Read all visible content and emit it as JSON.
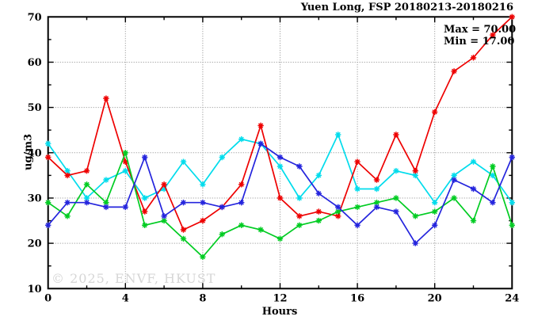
{
  "chart_data": {
    "type": "line",
    "title": "Yuen Long, FSP 20180213-20180216",
    "xlabel": "Hours",
    "ylabel": "ug/m3",
    "xlim": [
      0,
      24
    ],
    "ylim": [
      10,
      70
    ],
    "x_major_ticks": [
      0,
      4,
      8,
      12,
      16,
      20,
      24
    ],
    "x_minor_tick_step": 2,
    "y_major_ticks": [
      10,
      20,
      30,
      40,
      50,
      60,
      70
    ],
    "y_minor_tick_step": 5,
    "grid": "dotted gray lines at major ticks, full border box, inward ticks on all four sides",
    "legend": "none",
    "annotations": {
      "max": "Max = 70.00",
      "min": "Min = 17.00"
    },
    "watermark": "© 2025, ENVF, HKUST",
    "x": [
      0,
      1,
      2,
      3,
      4,
      5,
      6,
      7,
      8,
      9,
      10,
      11,
      12,
      13,
      14,
      15,
      16,
      17,
      18,
      19,
      20,
      21,
      22,
      23,
      24
    ],
    "series": [
      {
        "name": "series-cyan",
        "color": "#00dcec",
        "values": [
          42,
          36,
          30,
          34,
          36,
          30,
          32,
          38,
          33,
          39,
          43,
          42,
          37,
          30,
          35,
          44,
          32,
          32,
          36,
          35,
          29,
          35,
          38,
          35,
          29
        ]
      },
      {
        "name": "series-red",
        "color": "#ee0000",
        "values": [
          39,
          35,
          36,
          52,
          38,
          27,
          33,
          23,
          25,
          28,
          33,
          46,
          30,
          26,
          27,
          26,
          38,
          34,
          44,
          36,
          49,
          58,
          61,
          66,
          70
        ]
      },
      {
        "name": "series-green",
        "color": "#00cc22",
        "values": [
          29,
          26,
          33,
          29,
          40,
          24,
          25,
          21,
          17,
          22,
          24,
          23,
          21,
          24,
          25,
          27,
          28,
          29,
          30,
          26,
          27,
          30,
          25,
          37,
          24
        ]
      },
      {
        "name": "series-blue",
        "color": "#2424dd",
        "values": [
          24,
          29,
          29,
          28,
          28,
          39,
          26,
          29,
          29,
          28,
          29,
          42,
          39,
          37,
          31,
          28,
          24,
          28,
          27,
          20,
          24,
          34,
          32,
          29,
          39
        ]
      }
    ]
  }
}
